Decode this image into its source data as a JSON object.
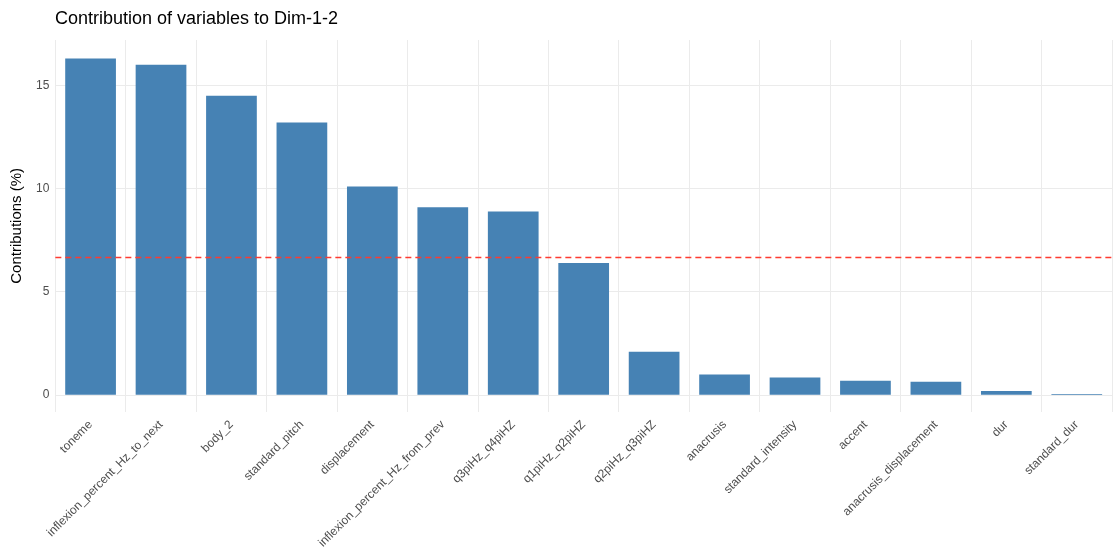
{
  "chart_data": {
    "type": "bar",
    "title": "Contribution of variables to Dim-1-2",
    "ylabel": "Contributions (%)",
    "categories": [
      "toneme",
      "inflexion_percent_Hz_to_next",
      "body_2",
      "standard_pitch",
      "displacement",
      "inflexion_percent_Hz_from_prev",
      "q3piHz_q4piHZ",
      "q1piHz_q2piHZ",
      "q2piHz_q3piHZ",
      "anacrusis",
      "standard_intensity",
      "accent",
      "anacrusis_displacement",
      "dur",
      "standard_dur"
    ],
    "values": [
      16.3,
      16.0,
      14.5,
      13.2,
      10.1,
      9.1,
      8.9,
      6.4,
      2.1,
      1.0,
      0.85,
      0.7,
      0.65,
      0.2,
      0.05
    ],
    "color": "#4682b4",
    "ylim": [
      -0.8,
      17.2
    ],
    "yticks": [
      0,
      5,
      10,
      15
    ],
    "grid": true,
    "legend": false,
    "ref_lines": [
      {
        "axis": "y",
        "value": 6.67,
        "color": "#ff3b30",
        "line_style": "dashed"
      }
    ]
  }
}
